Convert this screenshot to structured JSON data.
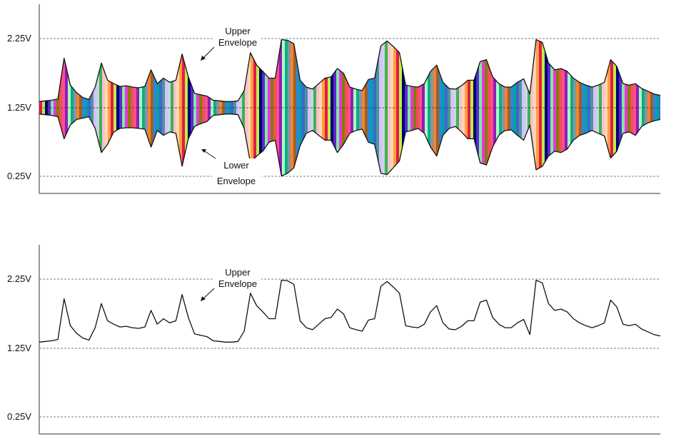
{
  "chart_data": [
    {
      "type": "line",
      "title": "",
      "xlabel": "",
      "ylabel": "",
      "ylim": [
        0.0,
        2.7
      ],
      "yticks": [
        {
          "value": 2.25,
          "label": "2.25V"
        },
        {
          "value": 1.25,
          "label": "1.25V"
        },
        {
          "value": 0.25,
          "label": "0.25V"
        }
      ],
      "grid": "dashed horizontal lines at tick values",
      "fill": "multicolor vertical bands between envelopes",
      "series": [
        {
          "name": "Upper Envelope",
          "color": "#111111"
        },
        {
          "name": "Lower Envelope",
          "color": "#111111"
        }
      ],
      "annotations": [
        {
          "lines": [
            "Upper",
            "Envelope"
          ],
          "points_to": "upper envelope",
          "position": "above"
        },
        {
          "lines": [
            "Lower",
            "Envelope"
          ],
          "points_to": "lower envelope",
          "position": "below"
        }
      ]
    },
    {
      "type": "line",
      "title": "",
      "xlabel": "",
      "ylabel": "",
      "ylim": [
        0.0,
        2.7
      ],
      "yticks": [
        {
          "value": 2.25,
          "label": "2.25V"
        },
        {
          "value": 1.25,
          "label": "1.25V"
        },
        {
          "value": 0.25,
          "label": "0.25V"
        }
      ],
      "grid": "dashed horizontal lines at tick values",
      "series": [
        {
          "name": "Upper Envelope",
          "color": "#111111"
        }
      ],
      "annotations": [
        {
          "lines": [
            "Upper",
            "Envelope"
          ],
          "points_to": "upper envelope",
          "position": "above"
        }
      ]
    }
  ],
  "upper_envelope": {
    "x": [
      0,
      1,
      2,
      3,
      4,
      5,
      6,
      7,
      8,
      9,
      10,
      11,
      12,
      13,
      14,
      15,
      16,
      17,
      18,
      19,
      20,
      21,
      22,
      23,
      24,
      25,
      26,
      27,
      28,
      29,
      30,
      31,
      32,
      33,
      34,
      35,
      36,
      37,
      38,
      39,
      40,
      41,
      42,
      43,
      44,
      45,
      46,
      47,
      48,
      49,
      50,
      51,
      52,
      53,
      54,
      55,
      56,
      57,
      58,
      59,
      60,
      61,
      62,
      63,
      64,
      65,
      66,
      67,
      68,
      69,
      70,
      71,
      72,
      73,
      74,
      75,
      76,
      77,
      78,
      79,
      80,
      81,
      82,
      83,
      84,
      85,
      86,
      87,
      88,
      89,
      90,
      91,
      92,
      93,
      94,
      95,
      96,
      97,
      98,
      99,
      100
    ],
    "y": [
      1.34,
      1.35,
      1.36,
      1.38,
      1.97,
      1.58,
      1.47,
      1.4,
      1.37,
      1.55,
      1.9,
      1.65,
      1.6,
      1.56,
      1.57,
      1.55,
      1.54,
      1.56,
      1.8,
      1.6,
      1.68,
      1.62,
      1.65,
      2.03,
      1.7,
      1.46,
      1.44,
      1.42,
      1.36,
      1.35,
      1.34,
      1.34,
      1.35,
      1.5,
      2.05,
      1.87,
      1.78,
      1.68,
      1.68,
      2.24,
      2.23,
      2.18,
      1.65,
      1.55,
      1.52,
      1.6,
      1.68,
      1.7,
      1.82,
      1.75,
      1.55,
      1.52,
      1.5,
      1.66,
      1.68,
      2.15,
      2.22,
      2.14,
      2.05,
      1.58,
      1.56,
      1.55,
      1.6,
      1.78,
      1.87,
      1.62,
      1.53,
      1.52,
      1.57,
      1.65,
      1.65,
      1.92,
      1.95,
      1.7,
      1.6,
      1.55,
      1.55,
      1.62,
      1.67,
      1.45,
      2.24,
      2.2,
      1.9,
      1.8,
      1.82,
      1.78,
      1.68,
      1.62,
      1.58,
      1.55,
      1.58,
      1.62,
      1.95,
      1.85,
      1.6,
      1.58,
      1.6,
      1.53,
      1.49,
      1.45,
      1.43
    ]
  },
  "lower_envelope": {
    "y": [
      1.16,
      1.15,
      1.14,
      1.12,
      0.8,
      1.0,
      1.08,
      1.1,
      1.12,
      0.95,
      0.6,
      0.72,
      0.9,
      0.95,
      0.96,
      0.96,
      0.95,
      0.94,
      0.68,
      0.92,
      0.85,
      0.9,
      0.88,
      0.4,
      0.8,
      0.98,
      1.02,
      1.05,
      1.14,
      1.15,
      1.16,
      1.16,
      1.15,
      0.95,
      0.45,
      0.55,
      0.62,
      0.75,
      0.78,
      0.26,
      0.3,
      0.38,
      0.7,
      0.88,
      0.92,
      0.85,
      0.78,
      0.78,
      0.6,
      0.72,
      0.88,
      0.92,
      0.94,
      0.75,
      0.72,
      0.3,
      0.28,
      0.38,
      0.48,
      0.9,
      0.92,
      0.95,
      0.88,
      0.68,
      0.55,
      0.85,
      0.95,
      0.98,
      0.9,
      0.8,
      0.8,
      0.45,
      0.42,
      0.68,
      0.85,
      0.92,
      0.93,
      0.85,
      0.78,
      1.0,
      0.35,
      0.4,
      0.55,
      0.62,
      0.6,
      0.65,
      0.78,
      0.85,
      0.88,
      0.92,
      0.88,
      0.84,
      0.52,
      0.62,
      0.88,
      0.9,
      0.85,
      0.98,
      1.03,
      1.06,
      1.08
    ]
  },
  "band_palette": [
    "#e6194b",
    "#3cb44b",
    "#4363d8",
    "#f58231",
    "#911eb4",
    "#42d4f4",
    "#f032e6",
    "#bfef45",
    "#fabed4",
    "#469990",
    "#9a6324",
    "#800000",
    "#aaffc3",
    "#808000",
    "#000075",
    "#ffd8b1",
    "#dcbeff",
    "#ff6b6b",
    "#2e86de",
    "#10ac84",
    "#ee5253",
    "#5f27cd",
    "#ff9f43",
    "#54a0ff",
    "#c8d6e5",
    "#01a3a4",
    "#8395a7",
    "#ff4d94",
    "#7bed9f",
    "#70a1ff"
  ]
}
